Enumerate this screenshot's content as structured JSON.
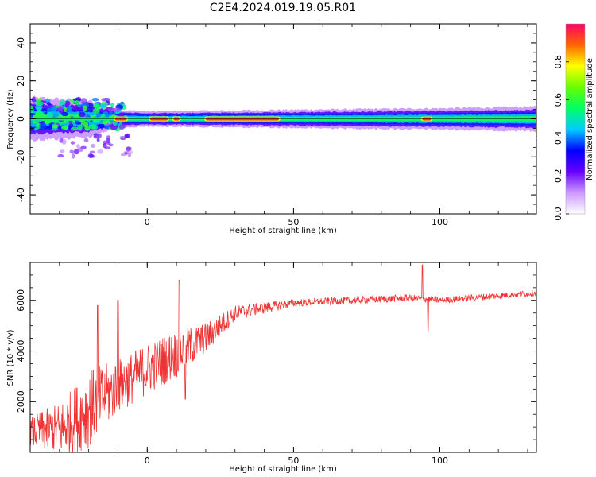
{
  "figure": {
    "title": "C2E4.2024.019.19.05.R01"
  },
  "chart_data": [
    {
      "type": "heatmap",
      "name": "spectrogram",
      "xlabel": "Height of straight line (km)",
      "ylabel": "Frequency (Hz)",
      "xlim": [
        -40,
        133
      ],
      "ylim": [
        -50,
        50
      ],
      "x_ticks": [
        0,
        50,
        100
      ],
      "y_ticks": [
        -40,
        -20,
        0,
        20,
        40
      ],
      "colorbar": {
        "label": "Normalized spectral amplitude",
        "range": [
          0,
          1
        ],
        "ticks": [
          "0.0",
          "0.2",
          "0.4",
          "0.6",
          "0.8"
        ],
        "colormap": [
          "#ffffff",
          "#cc99ff",
          "#6600ff",
          "#0000ff",
          "#00ccff",
          "#00ff66",
          "#66ff00",
          "#ffff00",
          "#ff6600",
          "#ff0066"
        ]
      },
      "ridge_frequency_hz": 0,
      "band_half_width_hz": [
        {
          "x": -40,
          "hz": 7
        },
        {
          "x": -20,
          "hz": 6
        },
        {
          "x": -10,
          "hz": 3
        },
        {
          "x": 0,
          "hz": 2.5
        },
        {
          "x": 50,
          "hz": 3
        },
        {
          "x": 100,
          "hz": 3.5
        },
        {
          "x": 133,
          "hz": 4
        }
      ],
      "peak_amplitude_segments": [
        {
          "x0": -11,
          "x1": -7
        },
        {
          "x0": 1,
          "x1": 7
        },
        {
          "x0": 9,
          "x1": 11
        },
        {
          "x0": 20,
          "x1": 45
        },
        {
          "x0": 94,
          "x1": 97
        }
      ]
    },
    {
      "type": "line",
      "name": "snr",
      "xlabel": "Height of straight line (km)",
      "ylabel": "SNR (10 * v/v)",
      "xlim": [
        -40,
        133
      ],
      "ylim": [
        0,
        7500
      ],
      "x_ticks": [
        0,
        50,
        100
      ],
      "y_ticks": [
        2000,
        4000,
        6000
      ],
      "color": "#ee3333",
      "trend": [
        {
          "x": -40,
          "y": 800
        },
        {
          "x": -30,
          "y": 900
        },
        {
          "x": -20,
          "y": 1700
        },
        {
          "x": -10,
          "y": 2600
        },
        {
          "x": 0,
          "y": 3300
        },
        {
          "x": 10,
          "y": 3900
        },
        {
          "x": 20,
          "y": 4500
        },
        {
          "x": 30,
          "y": 5500
        },
        {
          "x": 50,
          "y": 5900
        },
        {
          "x": 70,
          "y": 6000
        },
        {
          "x": 90,
          "y": 6100
        },
        {
          "x": 100,
          "y": 6000
        },
        {
          "x": 133,
          "y": 6300
        }
      ],
      "noise_amplitude": [
        {
          "x": -40,
          "y": 500
        },
        {
          "x": -20,
          "y": 1300
        },
        {
          "x": -10,
          "y": 900
        },
        {
          "x": 10,
          "y": 800
        },
        {
          "x": 30,
          "y": 250
        },
        {
          "x": 50,
          "y": 130
        },
        {
          "x": 133,
          "y": 100
        }
      ],
      "spikes": [
        {
          "x": 11,
          "y": 6800
        },
        {
          "x": 13,
          "y": 2100
        },
        {
          "x": 94,
          "y": 7400
        },
        {
          "x": 96,
          "y": 4800
        },
        {
          "x": -10,
          "y": 6000
        },
        {
          "x": -17,
          "y": 5800
        }
      ]
    }
  ]
}
